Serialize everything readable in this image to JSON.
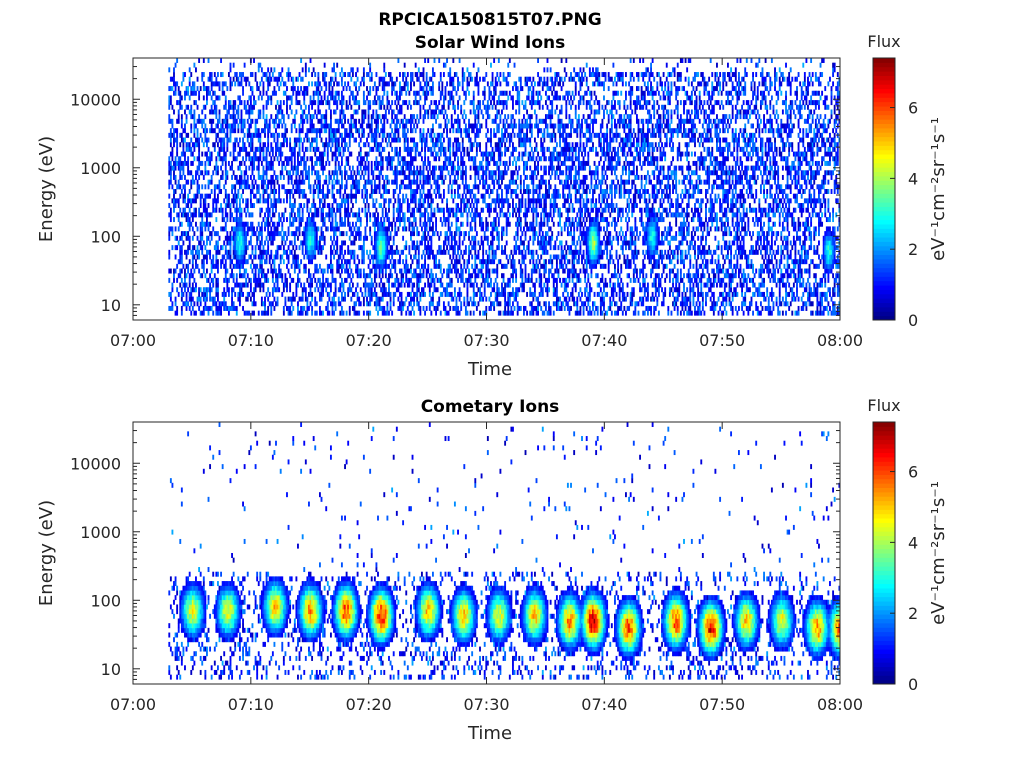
{
  "figure": {
    "title": "RPCICA150815T07.PNG"
  },
  "colors": {
    "colormap": [
      "#00007f",
      "#0000ff",
      "#007fff",
      "#00ffff",
      "#7fff7f",
      "#ffff00",
      "#ff7f00",
      "#ff0000",
      "#7f0000"
    ]
  },
  "chart_data": [
    {
      "type": "heatmap",
      "title": "Solar Wind Ions",
      "xlabel": "Time",
      "ylabel": "Energy (eV)",
      "x_ticks": [
        "07:00",
        "07:10",
        "07:20",
        "07:30",
        "07:40",
        "07:50",
        "08:00"
      ],
      "y_ticks": [
        "10",
        "100",
        "1000",
        "10000"
      ],
      "y_scale": "log",
      "ylim": [
        6,
        40000
      ],
      "data_start": "07:03",
      "colorbar": {
        "label": "Flux",
        "unit": "eV⁻¹cm⁻²sr⁻¹s⁻¹",
        "ticks": [
          "0",
          "2",
          "4",
          "6"
        ],
        "range": [
          0,
          7.4
        ]
      },
      "features": {
        "background_flux": 1.0,
        "bursts": [
          {
            "time": "07:09",
            "peak_energy_eV": 80,
            "flux": 3
          },
          {
            "time": "07:15",
            "peak_energy_eV": 90,
            "flux": 3
          },
          {
            "time": "07:21",
            "peak_energy_eV": 70,
            "flux": 3.5
          },
          {
            "time": "07:39",
            "peak_energy_eV": 80,
            "flux": 4
          },
          {
            "time": "07:44",
            "peak_energy_eV": 100,
            "flux": 3
          },
          {
            "time": "07:59",
            "peak_energy_eV": 60,
            "flux": 3
          }
        ]
      }
    },
    {
      "type": "heatmap",
      "title": "Cometary Ions",
      "xlabel": "Time",
      "ylabel": "Energy (eV)",
      "x_ticks": [
        "07:00",
        "07:10",
        "07:20",
        "07:30",
        "07:40",
        "07:50",
        "08:00"
      ],
      "y_ticks": [
        "10",
        "100",
        "1000",
        "10000"
      ],
      "y_scale": "log",
      "ylim": [
        6,
        40000
      ],
      "data_start": "07:03",
      "colorbar": {
        "label": "Flux",
        "unit": "eV⁻¹cm⁻²sr⁻¹s⁻¹",
        "ticks": [
          "0",
          "2",
          "4",
          "6"
        ],
        "range": [
          0,
          7.4
        ]
      },
      "features": {
        "background_flux": 1.0,
        "bursts": [
          {
            "time": "07:05",
            "peak_energy_eV": 70,
            "flux": 4.5
          },
          {
            "time": "07:08",
            "peak_energy_eV": 70,
            "flux": 4.5
          },
          {
            "time": "07:12",
            "peak_energy_eV": 80,
            "flux": 5
          },
          {
            "time": "07:15",
            "peak_energy_eV": 70,
            "flux": 5.5
          },
          {
            "time": "07:18",
            "peak_energy_eV": 70,
            "flux": 6
          },
          {
            "time": "07:21",
            "peak_energy_eV": 60,
            "flux": 6.5
          },
          {
            "time": "07:25",
            "peak_energy_eV": 70,
            "flux": 5
          },
          {
            "time": "07:28",
            "peak_energy_eV": 60,
            "flux": 5
          },
          {
            "time": "07:31",
            "peak_energy_eV": 60,
            "flux": 4.5
          },
          {
            "time": "07:34",
            "peak_energy_eV": 60,
            "flux": 5
          },
          {
            "time": "07:37",
            "peak_energy_eV": 50,
            "flux": 5.5
          },
          {
            "time": "07:39",
            "peak_energy_eV": 50,
            "flux": 7
          },
          {
            "time": "07:42",
            "peak_energy_eV": 40,
            "flux": 6
          },
          {
            "time": "07:46",
            "peak_energy_eV": 50,
            "flux": 6
          },
          {
            "time": "07:49",
            "peak_energy_eV": 40,
            "flux": 6.5
          },
          {
            "time": "07:52",
            "peak_energy_eV": 50,
            "flux": 5
          },
          {
            "time": "07:55",
            "peak_energy_eV": 50,
            "flux": 4.5
          },
          {
            "time": "07:58",
            "peak_energy_eV": 40,
            "flux": 5.5
          },
          {
            "time": "08:00",
            "peak_energy_eV": 40,
            "flux": 6
          }
        ]
      }
    }
  ]
}
